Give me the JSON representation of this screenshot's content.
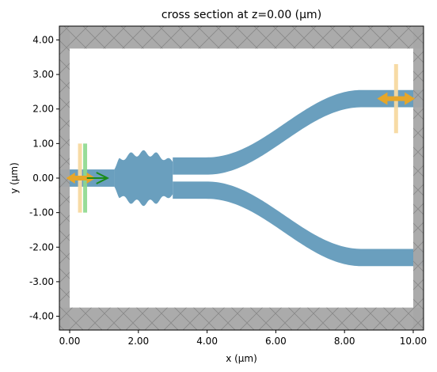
{
  "chart_data": {
    "type": "cross_section",
    "title": "cross section at z=0.00 (μm)",
    "xlabel": "x (μm)",
    "ylabel": "y (μm)",
    "xlim": [
      -0.3,
      10.3
    ],
    "ylim": [
      -4.4,
      4.4
    ],
    "xticks": [
      0,
      2,
      4,
      6,
      8,
      10
    ],
    "xtick_labels": [
      "0.00",
      "2.00",
      "4.00",
      "6.00",
      "8.00",
      "10.00"
    ],
    "yticks": [
      4,
      3,
      2,
      1,
      0,
      -1,
      -2,
      -3,
      -4
    ],
    "ytick_labels": [
      "4.00",
      "3.00",
      "2.00",
      "1.00",
      "0.00",
      "-1.00",
      "-2.00",
      "-3.00",
      "-4.00"
    ],
    "colors": {
      "waveguide": "#6a9fbe",
      "pml": "#a6a6a6",
      "pml_hatch": "#888888",
      "source": "#8dd88d",
      "source_arrow": "#1a8c1a",
      "monitor": "#f7d9a0",
      "monitor_arrow": "#e6a628"
    },
    "pml": {
      "left_x": [
        -0.3,
        0.0
      ],
      "right_x": [
        10.0,
        10.3
      ],
      "top_y": [
        3.75,
        4.4
      ],
      "bottom_y": [
        -4.4,
        -3.75
      ]
    },
    "input_waveguide": {
      "x": [
        -0.3,
        1.3
      ],
      "y_center": 0.0,
      "width": 0.5
    },
    "mmi": {
      "x": [
        1.3,
        3.0
      ],
      "max_half_height": 0.85
    },
    "output_arms": {
      "x_start": 3.0,
      "bend_start": 4.0,
      "bend_end": 8.5,
      "x_end": 10.3,
      "y_start": 0.35,
      "y_end": 2.3,
      "width": 0.5
    },
    "source": {
      "x": 0.45,
      "y_range": [
        -1.0,
        1.0
      ],
      "direction": "+x"
    },
    "input_monitor": {
      "x": 0.3,
      "y_range": [
        -1.0,
        1.0
      ],
      "direction": "+x"
    },
    "output_monitor": {
      "x": 9.5,
      "y_range": [
        1.3,
        3.3
      ],
      "direction": "both"
    }
  }
}
